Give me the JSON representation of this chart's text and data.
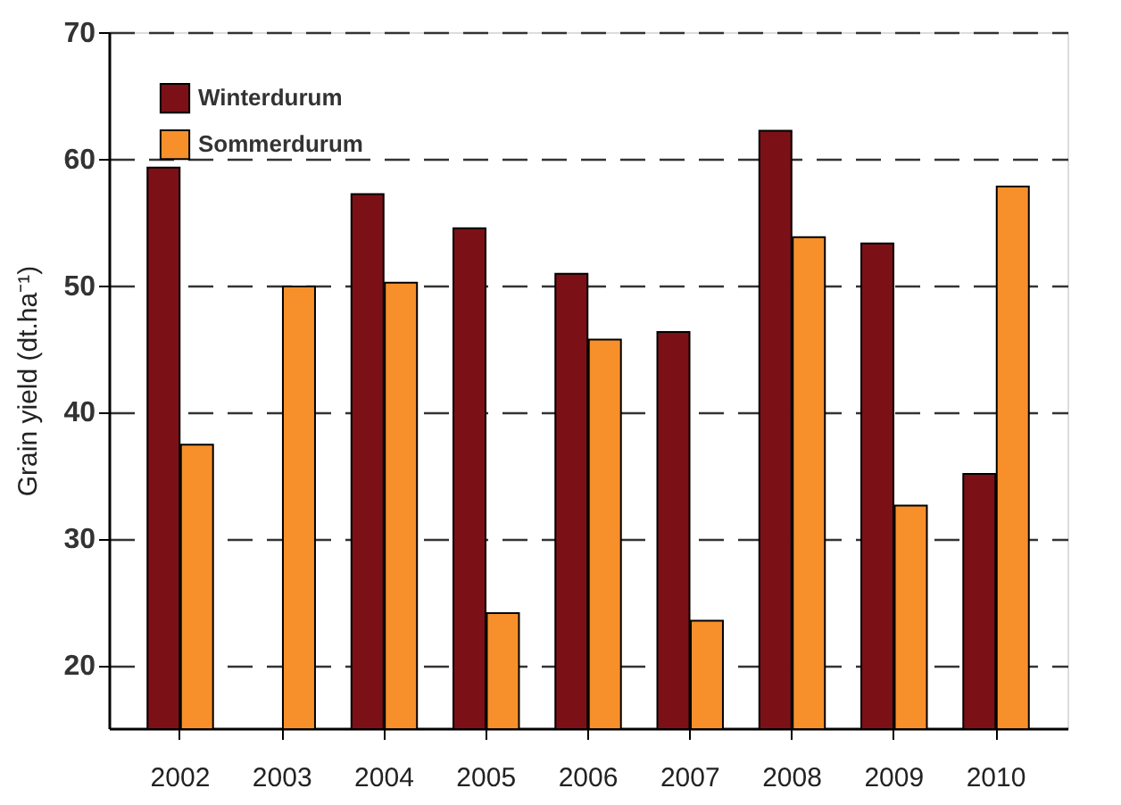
{
  "chart_data": {
    "type": "bar",
    "ylabel": "Grain yield (dt.ha⁻¹)",
    "categories": [
      "2002",
      "2003",
      "2004",
      "2005",
      "2006",
      "2007",
      "2008",
      "2009",
      "2010"
    ],
    "series": [
      {
        "name": "Winterdurum",
        "color": "#7b1116",
        "values": [
          59.3,
          null,
          57.2,
          54.5,
          50.9,
          46.3,
          62.2,
          53.3,
          35.1
        ]
      },
      {
        "name": "Sommerdurum",
        "color": "#f7902a",
        "values": [
          37.4,
          49.9,
          50.2,
          24.1,
          45.7,
          23.5,
          53.8,
          32.6,
          57.8
        ]
      }
    ],
    "ylim": [
      15,
      70
    ],
    "yticks": [
      20,
      30,
      40,
      50,
      60,
      70
    ],
    "grid": "y",
    "legend": "top left"
  }
}
